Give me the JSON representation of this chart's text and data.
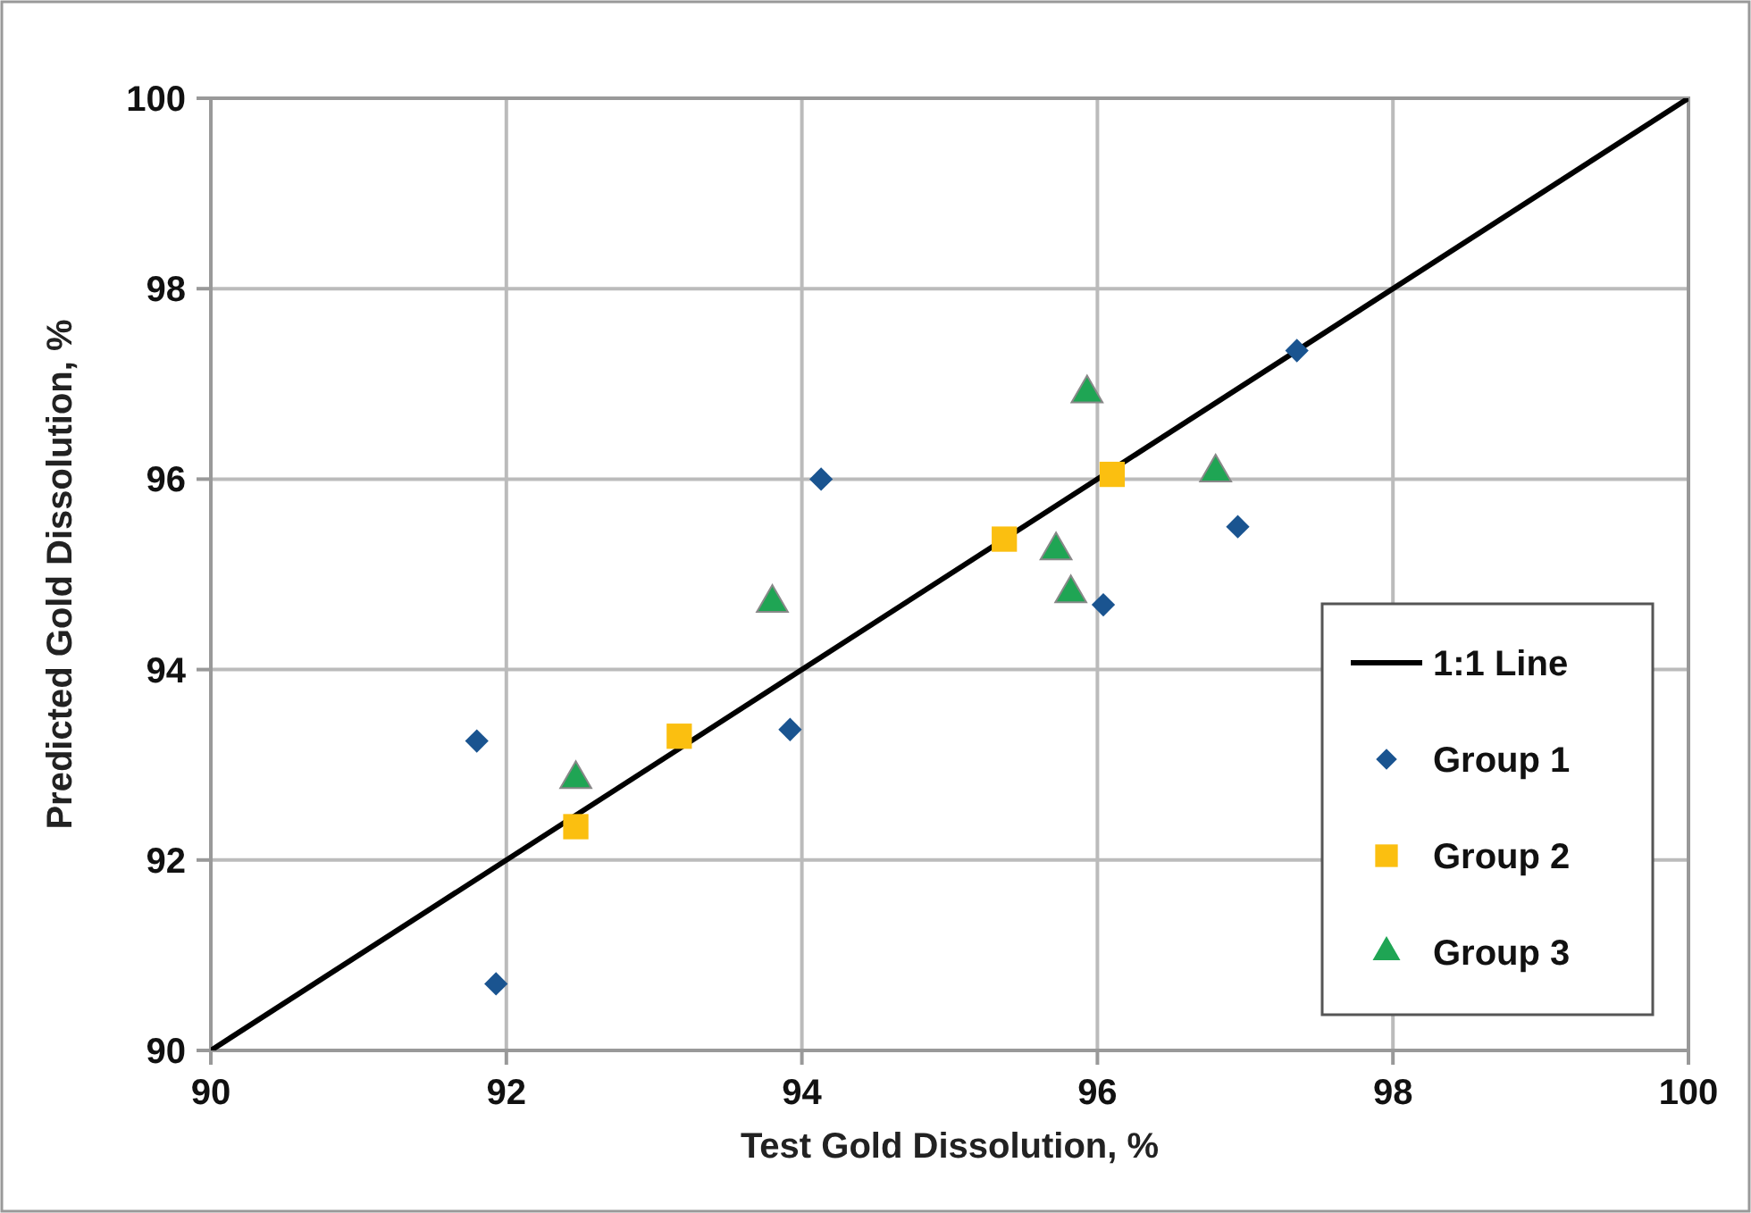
{
  "chart_data": {
    "type": "scatter",
    "xlabel": "Test Gold Dissolution, %",
    "ylabel": "Predicted Gold Dissolution, %",
    "xlim": [
      90,
      100
    ],
    "ylim": [
      90,
      100
    ],
    "xticks": [
      90,
      92,
      94,
      96,
      98,
      100
    ],
    "yticks": [
      90,
      92,
      94,
      96,
      98,
      100
    ],
    "grid": true,
    "legend": "bottom right",
    "series": [
      {
        "name": "1:1 Line",
        "type": "line",
        "color": "#000000",
        "marker": "none",
        "line_style": "solid",
        "x": [
          90,
          100
        ],
        "values": [
          90,
          100
        ]
      },
      {
        "name": "Group 1",
        "color": "#1a5490",
        "marker": "diamond",
        "x": [
          91.8,
          91.93,
          93.92,
          94.13,
          96.04,
          96.95,
          97.35
        ],
        "values": [
          93.25,
          90.7,
          93.37,
          96.0,
          94.68,
          95.5,
          97.35
        ]
      },
      {
        "name": "Group 2",
        "color": "#fbbf10",
        "marker": "square",
        "x": [
          92.47,
          93.17,
          95.37,
          96.1
        ],
        "values": [
          92.35,
          93.3,
          95.37,
          96.05
        ]
      },
      {
        "name": "Group 3",
        "color": "#1fa554",
        "marker": "triangle",
        "x": [
          92.47,
          93.8,
          95.72,
          95.82,
          95.93,
          96.8
        ],
        "values": [
          92.85,
          94.7,
          95.25,
          94.8,
          96.9,
          96.07
        ]
      }
    ]
  }
}
